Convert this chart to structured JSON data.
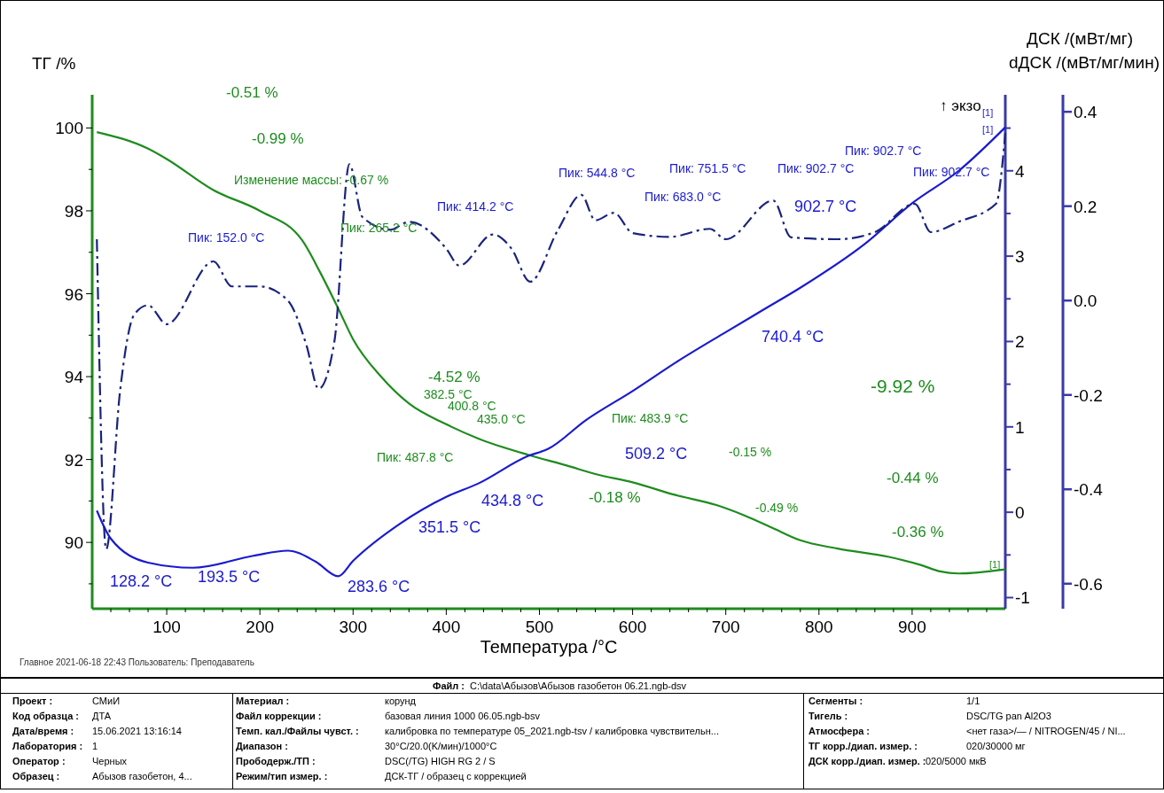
{
  "chart_data": {
    "type": "line",
    "xlabel": "Температура /°C",
    "ylabel": "ТГ /%",
    "y2label": "ДСК /(мВт/мг)",
    "y3label": "dДСК /(мВт/мг/мин)",
    "xlim": [
      20,
      1000
    ],
    "xticks": [
      {
        "value": 40,
        "label": null
      },
      {
        "value": 60,
        "label": null
      },
      {
        "value": 80,
        "label": null
      },
      100,
      {
        "value": 120,
        "label": null
      },
      {
        "value": 140,
        "label": null
      },
      {
        "value": 160,
        "label": null
      },
      {
        "value": 180,
        "label": null
      },
      200,
      {
        "value": 220,
        "label": null
      },
      {
        "value": 240,
        "label": null
      },
      {
        "value": 260,
        "label": null
      },
      {
        "value": 280,
        "label": null
      },
      300,
      {
        "value": 320,
        "label": null
      },
      {
        "value": 340,
        "label": null
      },
      {
        "value": 360,
        "label": null
      },
      {
        "value": 380,
        "label": null
      },
      400,
      {
        "value": 420,
        "label": null
      },
      {
        "value": 440,
        "label": null
      },
      {
        "value": 460,
        "label": null
      },
      {
        "value": 480,
        "label": null
      },
      500,
      {
        "value": 520,
        "label": null
      },
      {
        "value": 540,
        "label": null
      },
      {
        "value": 560,
        "label": null
      },
      {
        "value": 580,
        "label": null
      },
      600,
      {
        "value": 620,
        "label": null
      },
      {
        "value": 640,
        "label": null
      },
      {
        "value": 660,
        "label": null
      },
      {
        "value": 680,
        "label": null
      },
      700,
      {
        "value": 720,
        "label": null
      },
      {
        "value": 740,
        "label": null
      },
      {
        "value": 760,
        "label": null
      },
      {
        "value": 780,
        "label": null
      },
      800,
      {
        "value": 820,
        "label": null
      },
      {
        "value": 840,
        "label": null
      },
      {
        "value": 860,
        "label": null
      },
      {
        "value": 880,
        "label": null
      },
      900,
      {
        "value": 920,
        "label": null
      },
      {
        "value": 940,
        "label": null
      },
      {
        "value": 960,
        "label": null
      },
      {
        "value": 980,
        "label": null
      }
    ],
    "ylim": [
      88.4,
      100.8
    ],
    "yticks": [
      {
        "value": 89,
        "label": null
      },
      90,
      {
        "value": 91,
        "label": null
      },
      92,
      {
        "value": 93,
        "label": null
      },
      94,
      {
        "value": 95,
        "label": null
      },
      96,
      {
        "value": 97,
        "label": null
      },
      98,
      {
        "value": 99,
        "label": null
      },
      100
    ],
    "y2lim": [
      -1.13,
      4.89
    ],
    "y2ticks": [
      -1,
      {
        "value": -0.5,
        "label": null
      },
      0,
      {
        "value": 0.5,
        "label": null
      },
      1,
      {
        "value": 1.5,
        "label": null
      },
      2,
      {
        "value": 2.5,
        "label": null
      },
      3,
      {
        "value": 3.5,
        "label": null
      },
      4,
      {
        "value": 4.5,
        "label": null
      }
    ],
    "y3lim": [
      -0.653,
      0.436
    ],
    "y3ticks": [
      -0.6,
      -0.4,
      -0.2,
      {
        "value": 0,
        "label": "0.0"
      },
      0.2,
      0.4
    ],
    "series": [
      {
        "color": "#1e8c1e",
        "axis": "y",
        "line_style": "solid",
        "x": [
          25,
          80,
          100,
          150,
          200,
          245,
          265,
          285,
          300,
          330,
          360,
          400,
          435,
          490,
          530,
          560,
          600,
          645,
          690,
          720,
          750,
          780,
          820,
          875,
          910,
          930,
          950,
          1000
        ],
        "values": [
          99.9,
          99.5,
          99.25,
          98.5,
          98.0,
          97.3,
          96.5,
          95.6,
          94.9,
          94.0,
          93.35,
          92.85,
          92.5,
          92.1,
          91.85,
          91.65,
          91.45,
          91.15,
          90.9,
          90.65,
          90.35,
          90.05,
          89.85,
          89.65,
          89.45,
          89.3,
          89.25,
          89.35
        ]
      },
      {
        "color": "#1a1ad0",
        "axis": "y2",
        "line_style": "solid",
        "x": [
          25,
          40,
          80,
          128,
          193,
          230,
          260,
          284,
          300,
          351,
          400,
          435,
          488,
          509,
          550,
          600,
          650,
          700,
          740,
          780,
          850,
          900,
          950,
          1000
        ],
        "values": [
          0.02,
          -0.31,
          -0.59,
          -0.65,
          -0.51,
          -0.45,
          -0.58,
          -0.75,
          -0.57,
          -0.13,
          0.18,
          0.34,
          0.66,
          0.74,
          1.08,
          1.42,
          1.78,
          2.11,
          2.37,
          2.63,
          3.15,
          3.62,
          4.0,
          4.51
        ]
      },
      {
        "color": "#1a237e",
        "axis": "y3",
        "line_style": "dashed",
        "x": [
          25,
          35,
          50,
          65,
          80,
          100,
          150,
          170,
          200,
          230,
          250,
          263,
          280,
          296,
          310,
          340,
          360,
          400,
          414,
          450,
          470,
          490,
          520,
          545,
          560,
          580,
          600,
          640,
          683,
          700,
          751,
          770,
          820,
          860,
          903,
          920,
          950,
          990,
          1000
        ],
        "values": [
          0.13,
          -0.527,
          -0.19,
          -0.03,
          -0.01,
          -0.05,
          0.083,
          0.03,
          0.03,
          0.0,
          -0.095,
          -0.187,
          -0.086,
          0.289,
          0.177,
          0.15,
          0.167,
          0.11,
          0.074,
          0.14,
          0.11,
          0.04,
          0.15,
          0.224,
          0.17,
          0.186,
          0.143,
          0.135,
          0.152,
          0.13,
          0.212,
          0.134,
          0.13,
          0.145,
          0.205,
          0.145,
          0.167,
          0.205,
          0.355
        ]
      }
    ],
    "annotations": [
      "-0.51 %",
      "-0.99 %",
      "Изменение массы: -0.67 %",
      "Пик: 265.2 °C",
      "-4.52 %",
      "382.5 °C",
      "400.8 °C",
      "435.0 °C",
      "Пик: 487.8 °C",
      "Пик: 483.9 °C",
      "-0.18 %",
      "-0.15 %",
      "-0.49 %",
      "-0.44 %",
      "-0.36 %",
      "-9.92 %",
      "[1]",
      "Пик: 152.0 °C",
      "Пик: 414.2 °C",
      "Пик: 544.8 °C",
      "Пик: 683.0 °C",
      "Пик: 751.5 °C",
      "Пик: 902.7 °C",
      "Пик: 902.7 °C",
      "Пик: 902.7 °C",
      "902.7 °C",
      "[1]",
      "[1]",
      "740.4 °C",
      "509.2 °C",
      "434.8 °C",
      "351.5 °C",
      "128.2 °C",
      "193.5 °C",
      "283.6 °C",
      "↑ экзо",
      "Главное   2021-06-18 22:43   Пользователь: Преподаватель",
      "Файл :",
      "C:\\data\\Абызов\\Абызов газобетон 06.21.ngb-dsv",
      "Проект :",
      "СМиИ",
      "Материал :",
      "корунд",
      "Сегменты :",
      "1/1",
      "Код образца :",
      "ДТА",
      "Файл коррекции :",
      "базовая линия 1000 06.05.ngb-bsv",
      "Тигель :",
      "DSC/TG pan Al2O3",
      "Дата/время :",
      "15.06.2021 13:16:14",
      "Темп. кал./Файлы чувст. :",
      "калибровка по температуре 05_2021.ngb-tsv / калибровка чувствительн...",
      "Атмосфера :",
      "<нет газа>/— / NITROGEN/45 / NI...",
      "Лаборатория :",
      "1",
      "Диапазон :",
      "30°C/20.0(K/мин)/1000°C",
      "ТГ корр./диап. измер. :",
      "020/30000 мг",
      "Оператор :",
      "Черных",
      "Прободерж./ТП :",
      "DSC(/TG) HIGH RG 2 / S",
      "ДСК корр./диап. измер. :",
      "020/5000 мкВ",
      "Образец :",
      "Абызов газобетон, 4...",
      "Режим/тип измер. :",
      "ДСК-ТГ / образец с коррекцией"
    ]
  }
}
